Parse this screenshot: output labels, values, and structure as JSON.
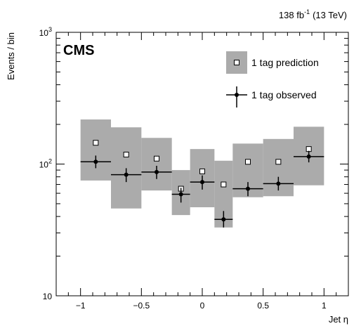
{
  "chart_data": {
    "type": "scatter",
    "experiment": "CMS",
    "luminosity": {
      "value": "138 fb",
      "exponent": "-1",
      "energy": "(13 TeV)"
    },
    "xlabel": "Jet η",
    "ylabel": "Events / bin",
    "xlim": [
      -1.2,
      1.2
    ],
    "ylim": [
      10,
      1000
    ],
    "ylog": true,
    "grid": false,
    "legend_position": "top-right",
    "x_ticks": [
      {
        "value": -1,
        "label": "−1"
      },
      {
        "value": -0.5,
        "label": "−0.5"
      },
      {
        "value": 0,
        "label": "0"
      },
      {
        "value": 0.5,
        "label": "0.5"
      },
      {
        "value": 1,
        "label": "1"
      }
    ],
    "y_ticks": [
      {
        "value": 10,
        "base": "10",
        "exp": ""
      },
      {
        "value": 100,
        "base": "10",
        "exp": "2"
      },
      {
        "value": 1000,
        "base": "10",
        "exp": "3"
      }
    ],
    "bin_edges": [
      -1.0,
      -0.75,
      -0.5,
      -0.25,
      -0.1,
      0.1,
      0.25,
      0.5,
      0.75,
      1.0
    ],
    "bin_centers": [
      -0.875,
      -0.625,
      -0.375,
      -0.175,
      0.0,
      0.175,
      0.375,
      0.625,
      0.875
    ],
    "series": [
      {
        "name": "1 tag prediction",
        "style": "open-square-with-gray-band",
        "values": [
          145,
          118,
          110,
          65,
          88,
          70,
          104,
          104,
          130
        ],
        "band_low": [
          75,
          46,
          63,
          41,
          47,
          33,
          56,
          57,
          69
        ],
        "band_high": [
          218,
          190,
          158,
          90,
          130,
          106,
          143,
          155,
          192
        ]
      },
      {
        "name": "1 tag observed",
        "style": "filled-circle-with-errors",
        "values": [
          104,
          83,
          87,
          59,
          73,
          38,
          65,
          71,
          114
        ],
        "err_low": [
          93,
          73,
          77,
          51,
          64,
          33,
          57,
          63,
          103
        ],
        "err_high": [
          116,
          93,
          97,
          66,
          82,
          44,
          73,
          80,
          126
        ]
      }
    ],
    "colors": {
      "band": "#ababab",
      "marker": "#000000"
    }
  }
}
